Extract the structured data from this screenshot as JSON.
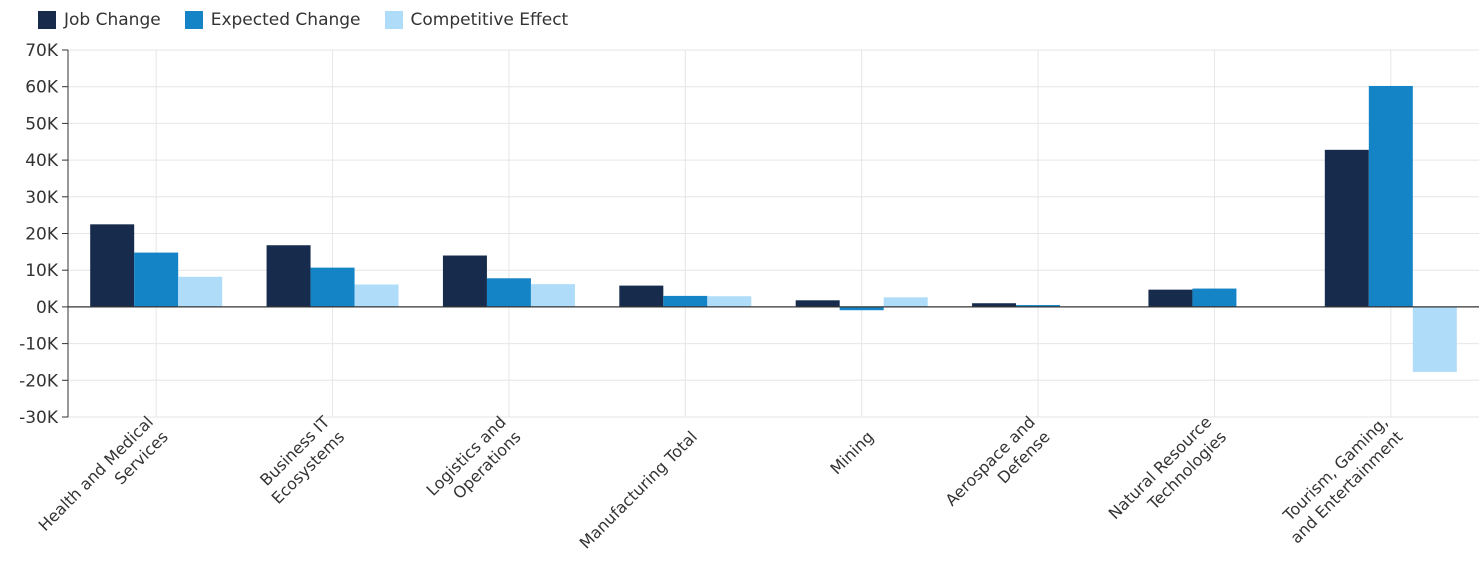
{
  "chart_data": {
    "type": "bar",
    "title": "",
    "xlabel": "",
    "ylabel": "",
    "categories": [
      [
        "Health and Medical",
        "Services"
      ],
      [
        "Business IT",
        "Ecosystems"
      ],
      [
        "Logistics and",
        "Operations"
      ],
      [
        "Manufacturing Total"
      ],
      [
        "Mining"
      ],
      [
        "Aerospace and",
        "Defense"
      ],
      [
        "Natural Resource",
        "Technologies"
      ],
      [
        "Tourism, Gaming,",
        "and Entertainment"
      ]
    ],
    "series": [
      {
        "name": "Job Change",
        "color": "#172b4d",
        "values": [
          22500,
          16800,
          14000,
          5800,
          1800,
          1000,
          4700,
          42800
        ]
      },
      {
        "name": "Expected Change",
        "color": "#1484c6",
        "values": [
          14800,
          10700,
          7800,
          3000,
          -900,
          500,
          5000,
          60200
        ]
      },
      {
        "name": "Competitive Effect",
        "color": "#aedcf9",
        "values": [
          8200,
          6100,
          6200,
          2900,
          2600,
          0,
          0,
          -17700
        ]
      }
    ],
    "ylim": [
      -30000,
      70000
    ],
    "yticks": [
      -30000,
      -20000,
      -10000,
      0,
      10000,
      20000,
      30000,
      40000,
      50000,
      60000,
      70000
    ],
    "ytick_labels": [
      "-30K",
      "-20K",
      "-10K",
      "0K",
      "10K",
      "20K",
      "30K",
      "40K",
      "50K",
      "60K",
      "70K"
    ],
    "grid": true,
    "legend_position": "top-left"
  }
}
